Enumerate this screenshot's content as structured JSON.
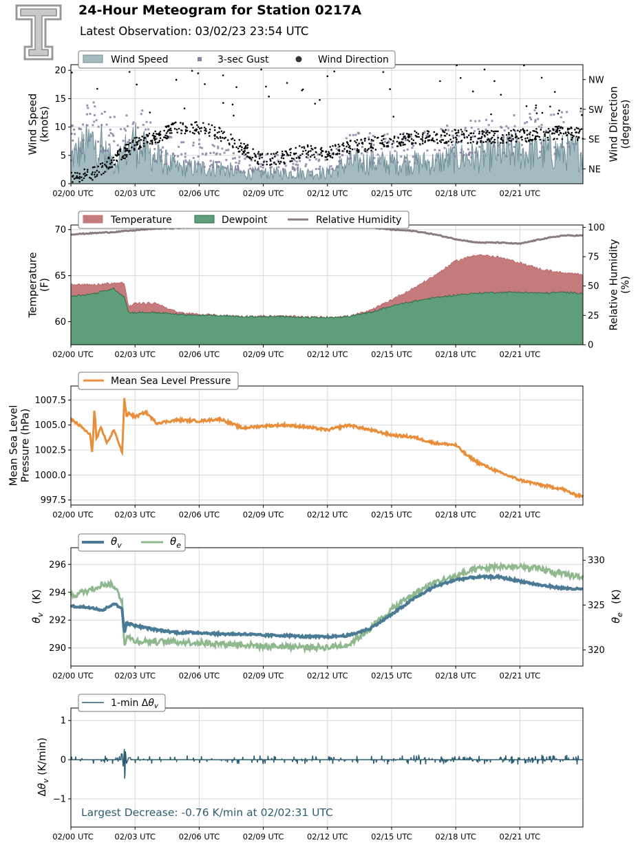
{
  "header": {
    "title": "24-Hour Meteogram for Station 0217A",
    "subtitle": "Latest Observation: 03/02/23 23:54 UTC"
  },
  "colors": {
    "wind_fill": "#a3bbc1",
    "wind_line": "#6f8f97",
    "gust": "#8a80a3",
    "direction": "#000000",
    "temperature": "#c57a7c",
    "dewpoint": "#5e9e7a",
    "dewpoint_edge": "#2e6b46",
    "rh": "#8c7b7c",
    "pressure": "#e88e3a",
    "theta_v": "#4a7a94",
    "theta_e": "#8fb88f",
    "dtheta": "#2d5d72",
    "annotation": "#2d5d72",
    "grid": "#d8d8d8"
  },
  "chart_data": [
    {
      "type": "area",
      "legend": [
        "Wind Speed",
        "3-sec Gust",
        "Wind Direction"
      ],
      "ylabel": "Wind Speed (knots)",
      "ylabel_lines": [
        "Wind Speed",
        "(knots)"
      ],
      "ylabel2": "Wind Direction (degrees)",
      "ylabel2_lines": [
        "Wind Direction",
        "(degrees)"
      ],
      "ylim": [
        0,
        21
      ],
      "yticks": [
        0,
        5,
        10,
        15,
        20
      ],
      "ylim2": [
        0,
        360
      ],
      "yticks2": [
        "NE",
        "SE",
        "SW",
        "NW"
      ],
      "x_ticks": [
        "02/00 UTC",
        "02/03 UTC",
        "02/06 UTC",
        "02/09 UTC",
        "02/12 UTC",
        "02/15 UTC",
        "02/18 UTC",
        "02/21 UTC"
      ],
      "grid": true,
      "legend_position": "top-left",
      "series": [
        {
          "name": "Wind Speed",
          "x_hours": [
            0,
            1,
            2,
            3,
            3.5,
            4,
            5,
            6,
            7,
            8,
            9,
            10,
            11,
            12,
            13,
            14,
            15,
            16,
            17,
            18,
            19,
            20,
            21,
            22,
            23,
            24
          ],
          "values": [
            5,
            8,
            4,
            8,
            6,
            5,
            3,
            3,
            3,
            2,
            2,
            2,
            2,
            2,
            4,
            4,
            4,
            4,
            4,
            5,
            5,
            6,
            6,
            6,
            6,
            6
          ]
        },
        {
          "name": "3-sec Gust",
          "x_hours": [
            0,
            1,
            2,
            3,
            4,
            5,
            6,
            7,
            8,
            9,
            10,
            11,
            12,
            13,
            14,
            15,
            16,
            17,
            18,
            19,
            20,
            21,
            22,
            23,
            24
          ],
          "values": [
            8,
            12,
            9,
            13,
            7,
            6,
            6,
            5,
            4,
            4,
            4,
            4,
            4,
            7,
            7,
            7,
            7,
            8,
            8,
            9,
            9,
            10,
            10,
            10,
            10
          ]
        },
        {
          "name": "Wind Direction",
          "x_hours": [
            0,
            1,
            2,
            3,
            4,
            5,
            6,
            7,
            8,
            9,
            10,
            11,
            12,
            13,
            14,
            15,
            16,
            17,
            18,
            19,
            20,
            21,
            22,
            23,
            24
          ],
          "values": [
            15,
            30,
            70,
            120,
            140,
            170,
            170,
            150,
            110,
            70,
            80,
            100,
            90,
            110,
            120,
            130,
            140,
            140,
            145,
            140,
            140,
            145,
            150,
            155,
            150
          ]
        }
      ]
    },
    {
      "type": "area",
      "legend": [
        "Temperature",
        "Dewpoint",
        "Relative Humidity"
      ],
      "ylabel": "Temperature (F)",
      "ylabel_lines": [
        "Temperature",
        "(F)"
      ],
      "ylabel2": "Relative Humidity (%)",
      "ylabel2_lines": [
        "Relative Humidity",
        "(%)"
      ],
      "ylim": [
        57.5,
        70.5
      ],
      "yticks": [
        60,
        65,
        70
      ],
      "ylim2": [
        0,
        102
      ],
      "yticks2": [
        0,
        25,
        50,
        75,
        100
      ],
      "x_ticks": [
        "02/00 UTC",
        "02/03 UTC",
        "02/06 UTC",
        "02/09 UTC",
        "02/12 UTC",
        "02/15 UTC",
        "02/18 UTC",
        "02/21 UTC"
      ],
      "grid": true,
      "legend_position": "top-left",
      "series": [
        {
          "name": "Temperature",
          "x_hours": [
            0,
            1,
            2,
            2.5,
            2.7,
            3,
            4,
            5,
            6,
            7,
            8,
            9,
            10,
            11,
            12,
            13,
            14,
            15,
            16,
            17,
            18,
            19,
            20,
            21,
            22,
            23,
            24
          ],
          "values": [
            64.1,
            64.0,
            64.2,
            64.2,
            61.6,
            62.0,
            62.0,
            61.0,
            60.8,
            60.7,
            60.6,
            60.6,
            60.6,
            60.5,
            60.5,
            60.6,
            61.2,
            62.4,
            63.6,
            65.0,
            66.6,
            67.3,
            67.0,
            66.4,
            65.7,
            65.3,
            65.1
          ]
        },
        {
          "name": "Dewpoint",
          "x_hours": [
            0,
            1,
            2,
            2.5,
            2.7,
            3,
            4,
            5,
            6,
            7,
            8,
            9,
            10,
            11,
            12,
            13,
            14,
            15,
            16,
            17,
            18,
            19,
            20,
            21,
            22,
            23,
            24
          ],
          "values": [
            62.8,
            63.0,
            63.6,
            62.7,
            61.0,
            61.0,
            61.0,
            60.8,
            60.7,
            60.7,
            60.6,
            60.6,
            60.6,
            60.5,
            60.5,
            60.6,
            61.0,
            61.7,
            62.2,
            62.6,
            62.9,
            63.1,
            63.2,
            63.2,
            63.1,
            63.2,
            63.1
          ]
        },
        {
          "name": "Relative Humidity",
          "x_hours": [
            0,
            2,
            4,
            6,
            8,
            10,
            12,
            14,
            15,
            16,
            17,
            18,
            19,
            20,
            21,
            22,
            23,
            24
          ],
          "values": [
            94,
            96,
            99,
            100,
            100,
            100,
            100,
            100,
            98,
            97,
            94,
            90,
            87,
            87,
            86,
            90,
            93,
            93
          ]
        }
      ]
    },
    {
      "type": "line",
      "legend": [
        "Mean Sea Level Pressure"
      ],
      "ylabel": "Mean Sea Level Pressure (hPa)",
      "ylabel_lines": [
        "Mean Sea Level",
        "Pressure (hPa)"
      ],
      "ylim": [
        997.0,
        1008.9
      ],
      "yticks": [
        "997.5",
        "1000.0",
        "1002.5",
        "1005.0",
        "1007.5"
      ],
      "x_ticks": [
        "02/00 UTC",
        "02/03 UTC",
        "02/06 UTC",
        "02/09 UTC",
        "02/12 UTC",
        "02/15 UTC",
        "02/18 UTC",
        "02/21 UTC"
      ],
      "grid": true,
      "legend_position": "top-left",
      "series": [
        {
          "name": "Mean Sea Level Pressure",
          "x_hours": [
            0,
            0.5,
            0.9,
            1.0,
            1.1,
            1.2,
            1.4,
            1.7,
            2.0,
            2.2,
            2.4,
            2.5,
            2.6,
            2.7,
            3.0,
            3.5,
            4,
            5,
            6,
            7,
            8,
            9,
            10,
            11,
            12,
            13,
            14,
            15,
            16,
            17,
            18,
            18.5,
            19,
            20,
            21,
            22,
            23,
            23.6,
            24
          ],
          "values": [
            1005.6,
            1004.8,
            1004.0,
            1002.2,
            1006.6,
            1003.6,
            1004.7,
            1003.2,
            1004.5,
            1003.5,
            1002.2,
            1007.7,
            1005.8,
            1006.2,
            1005.8,
            1006.3,
            1005.2,
            1005.5,
            1005.4,
            1005.6,
            1004.7,
            1004.9,
            1005.0,
            1004.8,
            1004.5,
            1005.0,
            1004.5,
            1004.0,
            1003.8,
            1003.2,
            1003.0,
            1002.0,
            1001.3,
            1000.3,
            999.5,
            999.0,
            998.6,
            998.0,
            997.9
          ]
        }
      ]
    },
    {
      "type": "line",
      "legend": [
        "θv",
        "θe"
      ],
      "ylabel": "θv (K)",
      "ylabel2": "θe (K)",
      "ylim": [
        288.7,
        297.2
      ],
      "yticks": [
        290,
        292,
        294,
        296
      ],
      "ylim2": [
        318.2,
        331.4
      ],
      "yticks2": [
        320,
        325,
        330
      ],
      "x_ticks": [
        "02/00 UTC",
        "02/03 UTC",
        "02/06 UTC",
        "02/09 UTC",
        "02/12 UTC",
        "02/15 UTC",
        "02/18 UTC",
        "02/21 UTC"
      ],
      "grid": true,
      "legend_position": "top-left",
      "series": [
        {
          "name": "θv",
          "x_hours": [
            0,
            1,
            1.5,
            2,
            2.4,
            2.5,
            2.6,
            3,
            4,
            5,
            6,
            7,
            8,
            9,
            10,
            11,
            12,
            13,
            14,
            15,
            16,
            17,
            18,
            19,
            20,
            21,
            22,
            23,
            24
          ],
          "values": [
            293.0,
            292.9,
            292.7,
            293.2,
            292.8,
            291.0,
            291.8,
            291.6,
            291.3,
            291.1,
            291.1,
            291.0,
            291.0,
            290.9,
            290.9,
            290.8,
            290.8,
            290.9,
            291.4,
            292.4,
            293.5,
            294.4,
            294.9,
            295.1,
            295.1,
            294.8,
            294.5,
            294.3,
            294.2
          ]
        },
        {
          "name": "θe",
          "x_hours": [
            0,
            1,
            1.5,
            2,
            2.4,
            2.5,
            2.6,
            3,
            4,
            5,
            6,
            7,
            8,
            9,
            10,
            11,
            12,
            13,
            14,
            15,
            16,
            17,
            18,
            19,
            20,
            21,
            22,
            23,
            24
          ],
          "values": [
            326.0,
            326.8,
            327.4,
            327.2,
            325.5,
            320.5,
            321.5,
            321.0,
            320.9,
            320.9,
            320.8,
            320.7,
            320.6,
            320.4,
            320.4,
            320.3,
            320.3,
            320.6,
            322.4,
            324.5,
            326.2,
            327.5,
            328.2,
            329.0,
            329.3,
            329.2,
            329.0,
            328.4,
            328.2
          ]
        }
      ]
    },
    {
      "type": "line",
      "legend": [
        "1-min Δθv"
      ],
      "ylabel": "Δθv (K/min)",
      "ylim": [
        -1.72,
        1.32
      ],
      "yticks": [
        -1,
        0,
        1
      ],
      "x_ticks": [
        "02/00 UTC",
        "02/03 UTC",
        "02/06 UTC",
        "02/09 UTC",
        "02/12 UTC",
        "02/15 UTC",
        "02/18 UTC",
        "02/21 UTC"
      ],
      "grid": true,
      "legend_position": "top-left",
      "annotation": "Largest Decrease: -0.76 K/min at 02/02:31 UTC",
      "series": [
        {
          "name": "1-min Δθv",
          "x_hours": [
            0,
            2.4,
            2.45,
            2.5,
            2.52,
            2.55,
            2.6,
            2.7,
            24
          ],
          "values": [
            0,
            0.15,
            -0.2,
            0.3,
            -0.76,
            0.25,
            -0.1,
            0.05,
            0
          ]
        }
      ]
    }
  ]
}
